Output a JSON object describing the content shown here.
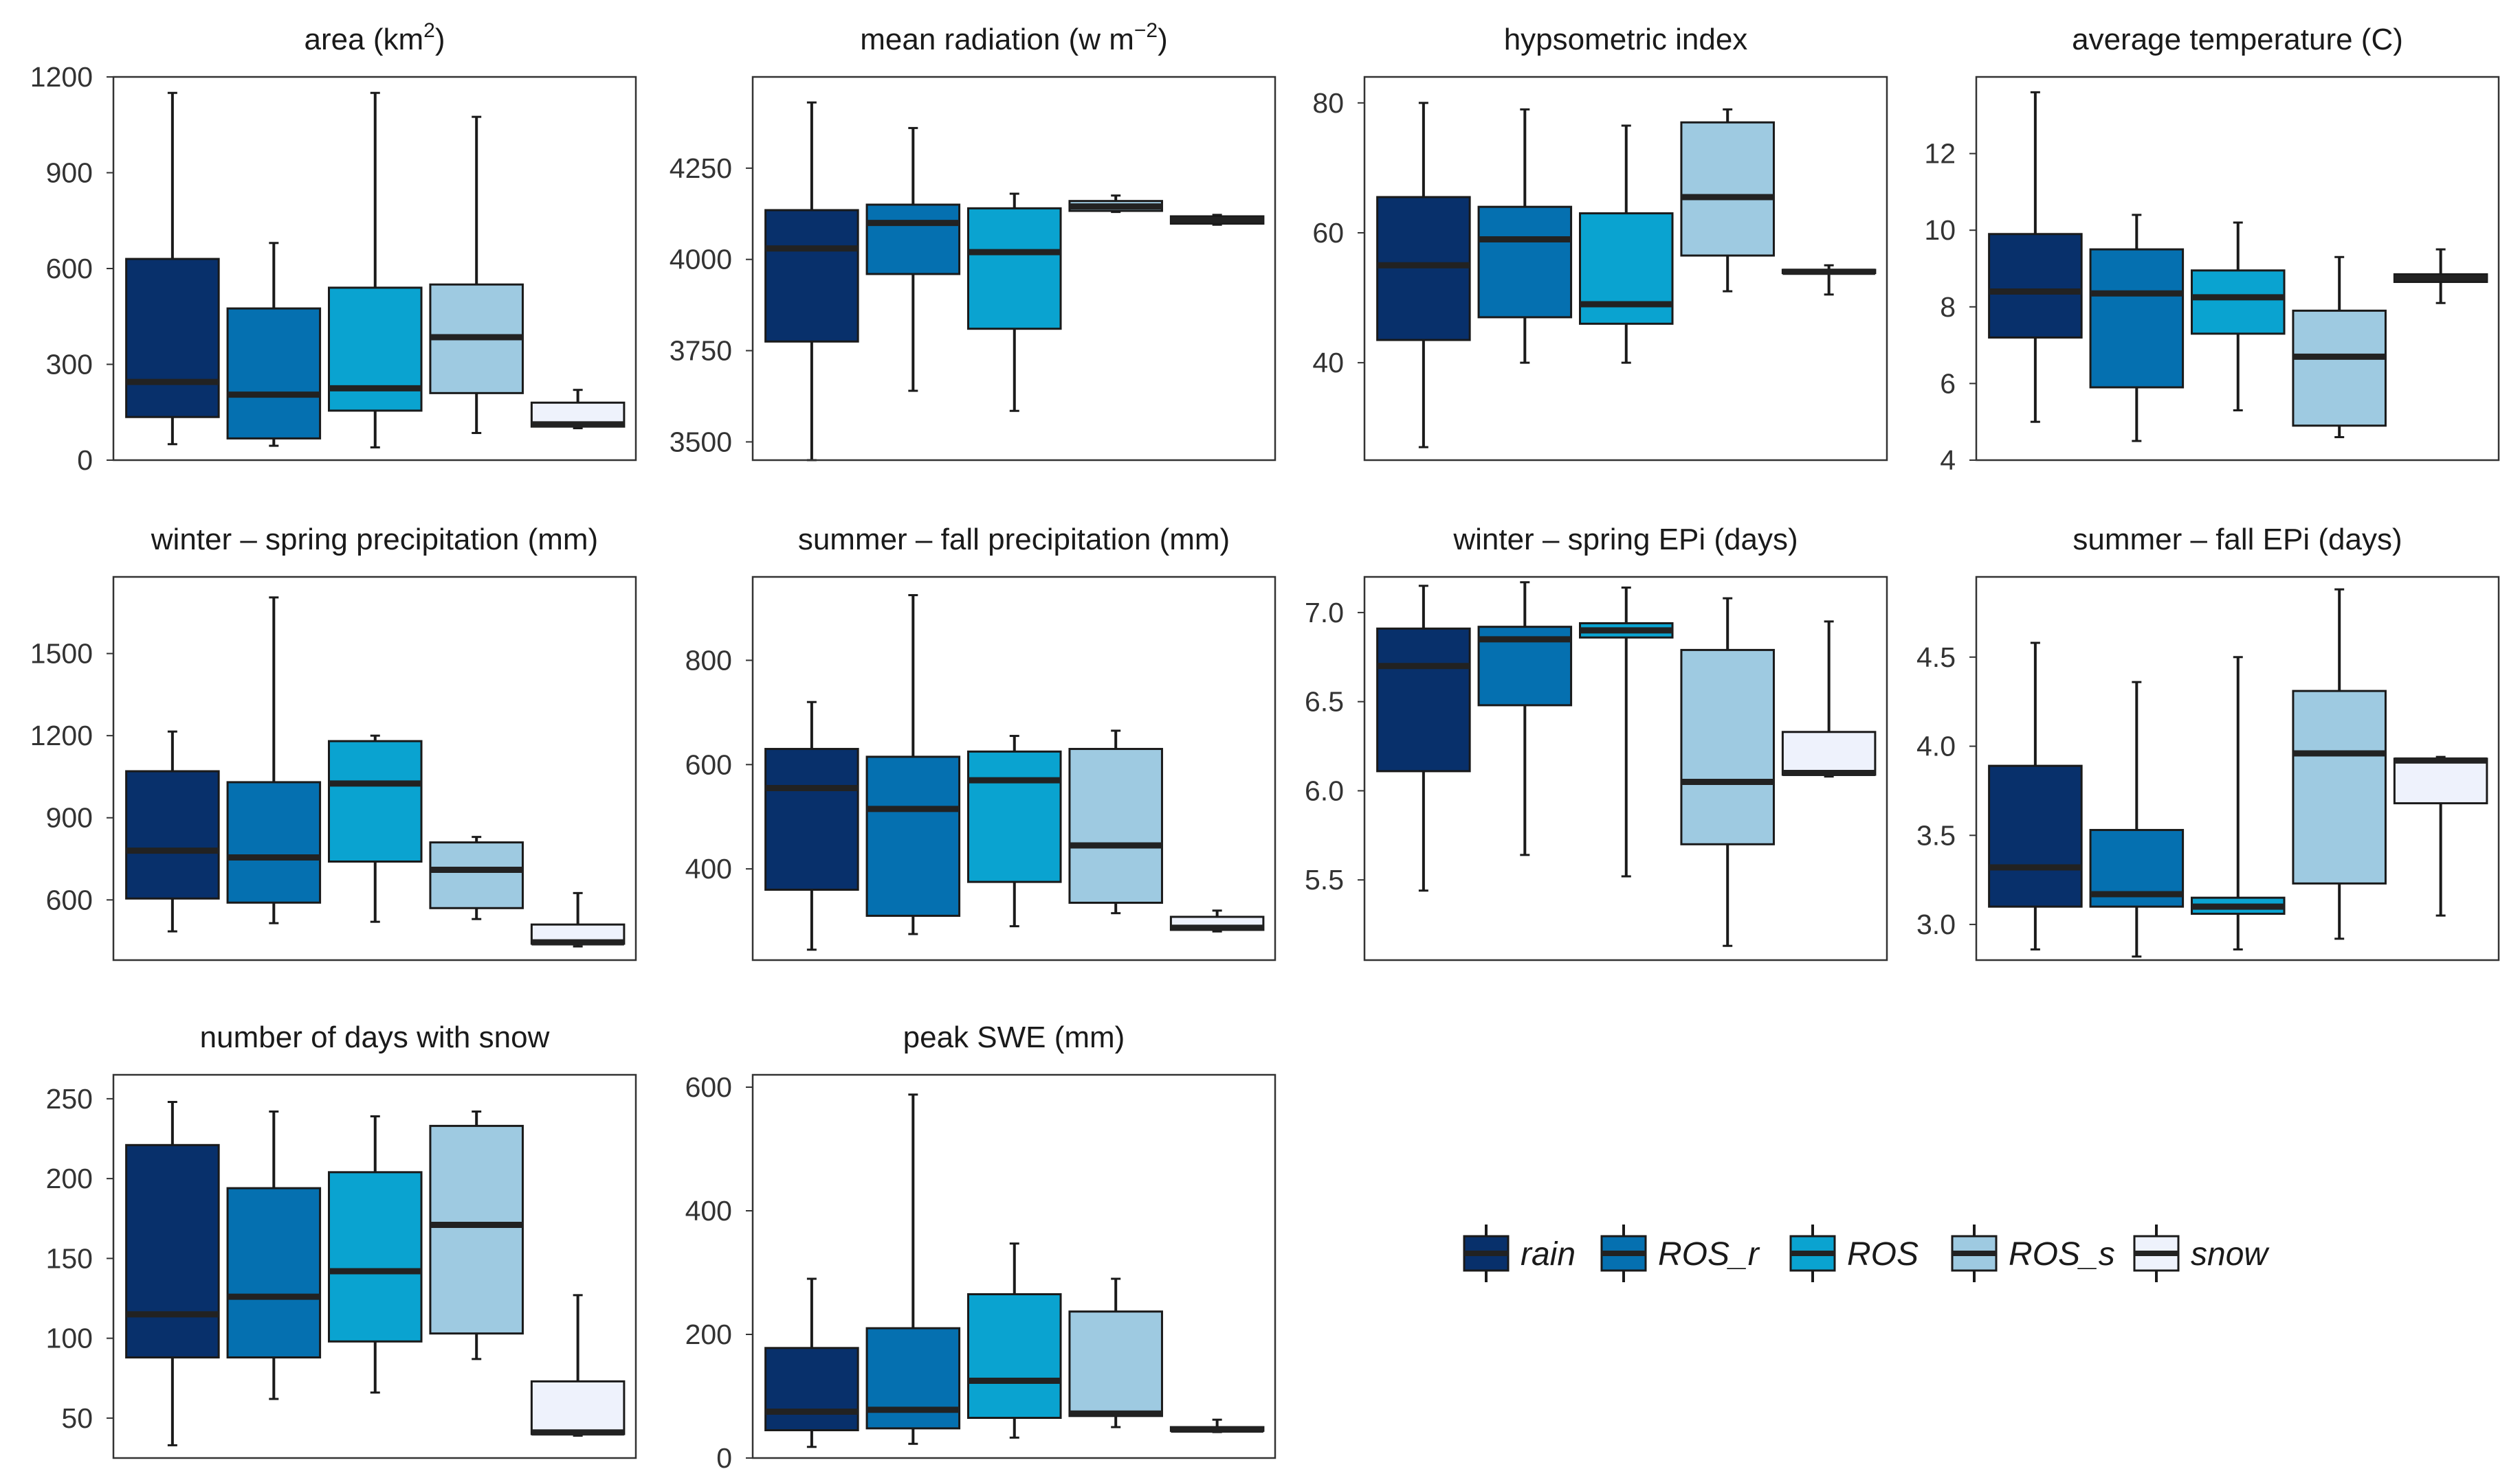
{
  "categories": [
    "rain",
    "ROS_r",
    "ROS",
    "ROS_s",
    "snow"
  ],
  "colors": {
    "rain": "#08306b",
    "ROS_r": "#0570b0",
    "ROS": "#0aa3d0",
    "ROS_s": "#9ecae1",
    "snow": "#eef2fc",
    "stroke": "#1a1a1a",
    "median": "#222222",
    "frame": "#333333"
  },
  "legend": {
    "items": [
      "rain",
      "ROS_r",
      "ROS",
      "ROS_s",
      "snow"
    ]
  },
  "chart_data": [
    {
      "type": "box",
      "title_main": "area (km",
      "title_sup": "2",
      "title_end": ")",
      "yticks": [
        0,
        300,
        600,
        900,
        1200
      ],
      "ytick_labels": [
        "0",
        "300",
        "600",
        "900",
        "1200"
      ],
      "ylim": [
        0,
        1200
      ],
      "boxes": [
        {
          "category": "rain",
          "whisker_low": 50,
          "q1": 135,
          "median": 245,
          "q3": 630,
          "whisker_high": 1150
        },
        {
          "category": "ROS_r",
          "whisker_low": 45,
          "q1": 68,
          "median": 205,
          "q3": 475,
          "whisker_high": 680
        },
        {
          "category": "ROS",
          "whisker_low": 40,
          "q1": 155,
          "median": 225,
          "q3": 540,
          "whisker_high": 1150
        },
        {
          "category": "ROS_s",
          "whisker_low": 85,
          "q1": 210,
          "median": 385,
          "q3": 550,
          "whisker_high": 1075
        },
        {
          "category": "snow",
          "whisker_low": 100,
          "q1": 105,
          "median": 112,
          "q3": 180,
          "whisker_high": 220
        }
      ]
    },
    {
      "type": "box",
      "title_main": "mean radiation (w m",
      "title_sup": "−2",
      "title_end": ")",
      "yticks": [
        3500,
        3750,
        4000,
        4250
      ],
      "ytick_labels": [
        "3500",
        "3750",
        "4000",
        "4250"
      ],
      "ylim": [
        3450,
        4500
      ],
      "boxes": [
        {
          "category": "rain",
          "whisker_low": 3450,
          "q1": 3775,
          "median": 4030,
          "q3": 4135,
          "whisker_high": 4430
        },
        {
          "category": "ROS_r",
          "whisker_low": 3640,
          "q1": 3960,
          "median": 4100,
          "q3": 4150,
          "whisker_high": 4360
        },
        {
          "category": "ROS",
          "whisker_low": 3585,
          "q1": 3810,
          "median": 4020,
          "q3": 4140,
          "whisker_high": 4180
        },
        {
          "category": "ROS_s",
          "whisker_low": 4130,
          "q1": 4133,
          "median": 4145,
          "q3": 4160,
          "whisker_high": 4175
        },
        {
          "category": "snow",
          "whisker_low": 4095,
          "q1": 4098,
          "median": 4108,
          "q3": 4118,
          "whisker_high": 4122
        }
      ]
    },
    {
      "type": "box",
      "title_main": "hypsometric index",
      "title_sup": "",
      "title_end": "",
      "yticks": [
        40,
        60,
        80
      ],
      "ytick_labels": [
        "40",
        "60",
        "80"
      ],
      "ylim": [
        25,
        84
      ],
      "boxes": [
        {
          "category": "rain",
          "whisker_low": 27,
          "q1": 43.5,
          "median": 55,
          "q3": 65.5,
          "whisker_high": 80
        },
        {
          "category": "ROS_r",
          "whisker_low": 40,
          "q1": 47,
          "median": 59,
          "q3": 64,
          "whisker_high": 79
        },
        {
          "category": "ROS",
          "whisker_low": 40,
          "q1": 46,
          "median": 49,
          "q3": 63,
          "whisker_high": 76.5
        },
        {
          "category": "ROS_s",
          "whisker_low": 51,
          "q1": 56.5,
          "median": 65.5,
          "q3": 77,
          "whisker_high": 79
        },
        {
          "category": "snow",
          "whisker_low": 50.5,
          "q1": 53.8,
          "median": 54,
          "q3": 54.3,
          "whisker_high": 55
        }
      ]
    },
    {
      "type": "box",
      "title_main": "average temperature (C)",
      "title_sup": "",
      "title_end": "",
      "yticks": [
        4,
        6,
        8,
        10,
        12
      ],
      "ytick_labels": [
        "4",
        "6",
        "8",
        "10",
        "12"
      ],
      "ylim": [
        4,
        14
      ],
      "boxes": [
        {
          "category": "rain",
          "whisker_low": 5,
          "q1": 7.2,
          "median": 8.4,
          "q3": 9.9,
          "whisker_high": 13.6
        },
        {
          "category": "ROS_r",
          "whisker_low": 4.5,
          "q1": 5.9,
          "median": 8.35,
          "q3": 9.5,
          "whisker_high": 10.4
        },
        {
          "category": "ROS",
          "whisker_low": 5.3,
          "q1": 7.3,
          "median": 8.25,
          "q3": 8.95,
          "whisker_high": 10.2
        },
        {
          "category": "ROS_s",
          "whisker_low": 4.6,
          "q1": 4.9,
          "median": 6.7,
          "q3": 7.9,
          "whisker_high": 9.3
        },
        {
          "category": "snow",
          "whisker_low": 8.1,
          "q1": 8.65,
          "median": 8.75,
          "q3": 8.85,
          "whisker_high": 9.5
        }
      ]
    },
    {
      "type": "box",
      "title_main": "winter – spring precipitation (mm)",
      "title_sup": "",
      "title_end": "",
      "yticks": [
        600,
        900,
        1200,
        1500
      ],
      "ytick_labels": [
        "600",
        "900",
        "1200",
        "1500"
      ],
      "ylim": [
        380,
        1780
      ],
      "boxes": [
        {
          "category": "rain",
          "whisker_low": 485,
          "q1": 605,
          "median": 780,
          "q3": 1070,
          "whisker_high": 1215
        },
        {
          "category": "ROS_r",
          "whisker_low": 515,
          "q1": 590,
          "median": 755,
          "q3": 1030,
          "whisker_high": 1705
        },
        {
          "category": "ROS",
          "whisker_low": 520,
          "q1": 740,
          "median": 1025,
          "q3": 1180,
          "whisker_high": 1200
        },
        {
          "category": "ROS_s",
          "whisker_low": 530,
          "q1": 570,
          "median": 710,
          "q3": 810,
          "whisker_high": 830
        },
        {
          "category": "snow",
          "whisker_low": 430,
          "q1": 440,
          "median": 445,
          "q3": 510,
          "whisker_high": 625
        }
      ]
    },
    {
      "type": "box",
      "title_main": "summer – fall precipitation (mm)",
      "title_sup": "",
      "title_end": "",
      "yticks": [
        400,
        600,
        800
      ],
      "ytick_labels": [
        "400",
        "600",
        "800"
      ],
      "ylim": [
        225,
        960
      ],
      "boxes": [
        {
          "category": "rain",
          "whisker_low": 245,
          "q1": 360,
          "median": 555,
          "q3": 630,
          "whisker_high": 720
        },
        {
          "category": "ROS_r",
          "whisker_low": 275,
          "q1": 310,
          "median": 515,
          "q3": 615,
          "whisker_high": 925
        },
        {
          "category": "ROS",
          "whisker_low": 290,
          "q1": 375,
          "median": 570,
          "q3": 625,
          "whisker_high": 655
        },
        {
          "category": "ROS_s",
          "whisker_low": 315,
          "q1": 335,
          "median": 445,
          "q3": 630,
          "whisker_high": 665
        },
        {
          "category": "snow",
          "whisker_low": 280,
          "q1": 283,
          "median": 287,
          "q3": 308,
          "whisker_high": 320
        }
      ]
    },
    {
      "type": "box",
      "title_main": "winter – spring EPi (days)",
      "title_sup": "",
      "title_end": "",
      "yticks": [
        5.5,
        6.0,
        6.5,
        7.0
      ],
      "ytick_labels": [
        "5.5",
        "6.0",
        "6.5",
        "7.0"
      ],
      "ylim": [
        5.05,
        7.2
      ],
      "boxes": [
        {
          "category": "rain",
          "whisker_low": 5.44,
          "q1": 6.11,
          "median": 6.7,
          "q3": 6.91,
          "whisker_high": 7.15
        },
        {
          "category": "ROS_r",
          "whisker_low": 5.64,
          "q1": 6.48,
          "median": 6.85,
          "q3": 6.92,
          "whisker_high": 7.17
        },
        {
          "category": "ROS",
          "whisker_low": 5.52,
          "q1": 6.86,
          "median": 6.9,
          "q3": 6.94,
          "whisker_high": 7.14
        },
        {
          "category": "ROS_s",
          "whisker_low": 5.13,
          "q1": 5.7,
          "median": 6.05,
          "q3": 6.79,
          "whisker_high": 7.08
        },
        {
          "category": "snow",
          "whisker_low": 6.08,
          "q1": 6.09,
          "median": 6.1,
          "q3": 6.33,
          "whisker_high": 6.95
        }
      ]
    },
    {
      "type": "box",
      "title_main": "summer – fall EPi (days)",
      "title_sup": "",
      "title_end": "",
      "yticks": [
        3.0,
        3.5,
        4.0,
        4.5
      ],
      "ytick_labels": [
        "3.0",
        "3.5",
        "4.0",
        "4.5"
      ],
      "ylim": [
        2.8,
        4.95
      ],
      "boxes": [
        {
          "category": "rain",
          "whisker_low": 2.86,
          "q1": 3.1,
          "median": 3.32,
          "q3": 3.89,
          "whisker_high": 4.58
        },
        {
          "category": "ROS_r",
          "whisker_low": 2.82,
          "q1": 3.1,
          "median": 3.17,
          "q3": 3.53,
          "whisker_high": 4.36
        },
        {
          "category": "ROS",
          "whisker_low": 2.86,
          "q1": 3.06,
          "median": 3.1,
          "q3": 3.15,
          "whisker_high": 4.5
        },
        {
          "category": "ROS_s",
          "whisker_low": 2.92,
          "q1": 3.23,
          "median": 3.96,
          "q3": 4.31,
          "whisker_high": 4.88
        },
        {
          "category": "snow",
          "whisker_low": 3.05,
          "q1": 3.68,
          "median": 3.92,
          "q3": 3.93,
          "whisker_high": 3.94
        }
      ]
    },
    {
      "type": "box",
      "title_main": "number of days with snow",
      "title_sup": "",
      "title_end": "",
      "yticks": [
        50,
        100,
        150,
        200,
        250
      ],
      "ytick_labels": [
        "50",
        "100",
        "150",
        "200",
        "250"
      ],
      "ylim": [
        25,
        265
      ],
      "boxes": [
        {
          "category": "rain",
          "whisker_low": 33,
          "q1": 88,
          "median": 115,
          "q3": 221,
          "whisker_high": 248
        },
        {
          "category": "ROS_r",
          "whisker_low": 62,
          "q1": 88,
          "median": 126,
          "q3": 194,
          "whisker_high": 242
        },
        {
          "category": "ROS",
          "whisker_low": 66,
          "q1": 98,
          "median": 142,
          "q3": 204,
          "whisker_high": 239
        },
        {
          "category": "ROS_s",
          "whisker_low": 87,
          "q1": 103,
          "median": 171,
          "q3": 233,
          "whisker_high": 242
        },
        {
          "category": "snow",
          "whisker_low": 39,
          "q1": 40,
          "median": 41,
          "q3": 73,
          "whisker_high": 127
        }
      ]
    },
    {
      "type": "box",
      "title_main": "peak SWE (mm)",
      "title_sup": "",
      "title_end": "",
      "yticks": [
        0,
        200,
        400,
        600
      ],
      "ytick_labels": [
        "0",
        "200",
        "400",
        "600"
      ],
      "ylim": [
        0,
        620
      ],
      "boxes": [
        {
          "category": "rain",
          "whisker_low": 18,
          "q1": 45,
          "median": 75,
          "q3": 178,
          "whisker_high": 290
        },
        {
          "category": "ROS_r",
          "whisker_low": 23,
          "q1": 48,
          "median": 78,
          "q3": 210,
          "whisker_high": 588
        },
        {
          "category": "ROS",
          "whisker_low": 33,
          "q1": 65,
          "median": 125,
          "q3": 265,
          "whisker_high": 347
        },
        {
          "category": "ROS_s",
          "whisker_low": 50,
          "q1": 68,
          "median": 72,
          "q3": 237,
          "whisker_high": 290
        },
        {
          "category": "snow",
          "whisker_low": 42,
          "q1": 44,
          "median": 46,
          "q3": 50,
          "whisker_high": 62
        }
      ]
    }
  ]
}
